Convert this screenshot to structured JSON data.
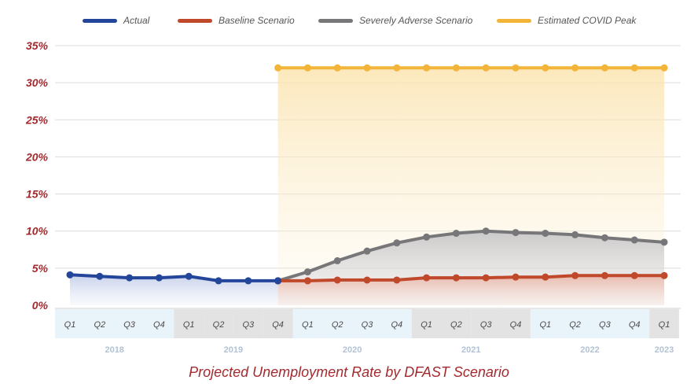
{
  "chart_data": {
    "type": "line",
    "title": "Projected Unemployment Rate by DFAST Scenario",
    "quarters": [
      "Q1",
      "Q2",
      "Q3",
      "Q4",
      "Q1",
      "Q2",
      "Q3",
      "Q4",
      "Q1",
      "Q2",
      "Q3",
      "Q4",
      "Q1",
      "Q2",
      "Q3",
      "Q4",
      "Q1",
      "Q2",
      "Q3",
      "Q4",
      "Q1"
    ],
    "years": [
      {
        "label": "2018",
        "start": 0,
        "count": 4
      },
      {
        "label": "2019",
        "start": 4,
        "count": 4
      },
      {
        "label": "2020",
        "start": 8,
        "count": 4
      },
      {
        "label": "2021",
        "start": 12,
        "count": 4
      },
      {
        "label": "2022",
        "start": 16,
        "count": 4
      },
      {
        "label": "2023",
        "start": 20,
        "count": 1
      }
    ],
    "ylim": [
      0,
      35
    ],
    "yticks": [
      "0%",
      "5%",
      "10%",
      "15%",
      "20%",
      "25%",
      "30%",
      "35%"
    ],
    "ytick_values": [
      0,
      5,
      10,
      15,
      20,
      25,
      30,
      35
    ],
    "grid": true,
    "legend_position": "top",
    "series": [
      {
        "name": "Actual",
        "color": "#24469a",
        "start": 0,
        "values": [
          4.1,
          3.9,
          3.7,
          3.7,
          3.9,
          3.3,
          3.3,
          3.3
        ]
      },
      {
        "name": "Baseline Scenario",
        "color": "#c0492b",
        "start": 7,
        "values": [
          3.3,
          3.3,
          3.4,
          3.4,
          3.4,
          3.7,
          3.7,
          3.7,
          3.8,
          3.8,
          4.0,
          4.0,
          4.0,
          4.0
        ]
      },
      {
        "name": "Severely Adverse Scenario",
        "color": "#77777a",
        "start": 7,
        "values": [
          3.3,
          4.5,
          6.0,
          7.3,
          8.4,
          9.2,
          9.7,
          10.0,
          9.8,
          9.7,
          9.5,
          9.1,
          8.8,
          8.5
        ]
      },
      {
        "name": "Estimated COVID Peak",
        "color": "#f2b53a",
        "start": 7,
        "values": [
          32,
          32,
          32,
          32,
          32,
          32,
          32,
          32,
          32,
          32,
          32,
          32,
          32,
          32
        ]
      }
    ]
  }
}
